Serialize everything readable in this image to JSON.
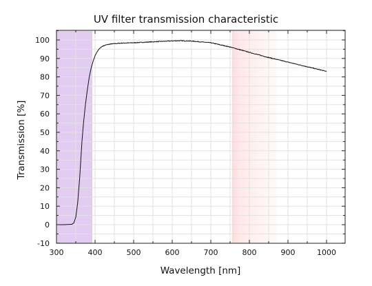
{
  "chart_data": {
    "type": "line",
    "title": "UV filter transmission characteristic",
    "xlabel": "Wavelength [nm]",
    "ylabel": "Transmission [%]",
    "xlim": [
      300,
      1000
    ],
    "ylim": [
      -10,
      105
    ],
    "grid": true,
    "x_major_ticks": [
      300,
      400,
      500,
      600,
      700,
      800,
      900,
      1000
    ],
    "y_major_ticks": [
      -10,
      0,
      10,
      20,
      30,
      40,
      50,
      60,
      70,
      80,
      90,
      100
    ],
    "shaded_regions": [
      {
        "x_start": 300,
        "x_end": 393,
        "color": "#e3ccf2",
        "style": "solid"
      },
      {
        "x_start": 755,
        "x_end": 870,
        "color": "#ffd9d9",
        "style": "fade"
      }
    ],
    "series": [
      {
        "color": "#111111",
        "x": [
          300,
          320,
          340,
          345,
          350,
          355,
          360,
          363,
          366,
          370,
          375,
          380,
          385,
          390,
          395,
          400,
          405,
          410,
          415,
          420,
          430,
          440,
          450,
          470,
          500,
          550,
          600,
          620,
          650,
          700,
          750,
          800,
          850,
          900,
          950,
          1000
        ],
        "y": [
          0,
          0,
          0.2,
          1,
          4,
          12,
          25,
          35,
          45,
          55,
          65,
          73,
          80,
          85,
          88.5,
          91.5,
          93.5,
          95,
          96,
          96.7,
          97.4,
          97.8,
          98,
          98.3,
          98.5,
          99,
          99.5,
          99.6,
          99.4,
          98.5,
          96.2,
          93.3,
          90.5,
          88,
          85.5,
          83
        ]
      }
    ]
  }
}
